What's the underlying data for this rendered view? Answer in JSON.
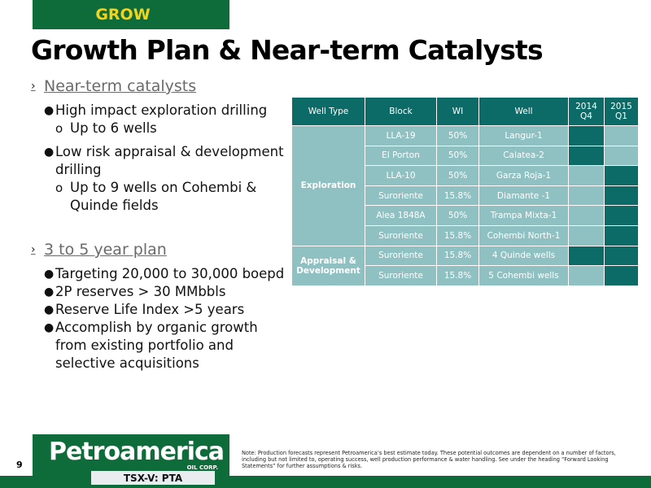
{
  "header": {
    "tab_label": "GROW",
    "title": "Growth Plan & Near-term Catalysts"
  },
  "section1": {
    "heading": "Near-term catalysts",
    "b1": "High impact exploration drilling",
    "b1_sub": "Up to 6 wells",
    "b2": "Low risk appraisal & development drilling",
    "b2_sub": "Up to 9 wells on Cohembi & Quinde fields"
  },
  "section2": {
    "heading": "3 to 5 year plan",
    "b1": "Targeting 20,000 to 30,000 boepd",
    "b2": "2P reserves > 30 MMbbls",
    "b3": "Reserve Life Index >5 years",
    "b4": "Accomplish by organic growth from existing portfolio and selective acquisitions"
  },
  "table": {
    "headers": {
      "well_type": "Well Type",
      "block": "Block",
      "wi": "WI",
      "well": "Well",
      "q1": "2014",
      "q1b": "Q4",
      "q2": "2015",
      "q2b": "Q1"
    },
    "group_exploration": "Exploration",
    "group_appraisal": "Appraisal & Development",
    "rows": [
      {
        "block": "LLA-19",
        "wi": "50%",
        "well": "Langur-1",
        "q4": true,
        "q1": false
      },
      {
        "block": "El Porton",
        "wi": "50%",
        "well": "Calatea-2",
        "q4": true,
        "q1": false
      },
      {
        "block": "LLA-10",
        "wi": "50%",
        "well": "Garza  Roja-1",
        "q4": false,
        "q1": true
      },
      {
        "block": "Suroriente",
        "wi": "15.8%",
        "well": "Diamante -1",
        "q4": false,
        "q1": true
      },
      {
        "block": "Alea 1848A",
        "wi": "50%",
        "well": "Trampa Mixta-1",
        "q4": false,
        "q1": true
      },
      {
        "block": "Suroriente",
        "wi": "15.8%",
        "well": "Cohembi North-1",
        "q4": false,
        "q1": true
      },
      {
        "block": "Suroriente",
        "wi": "15.8%",
        "well": "4 Quinde wells",
        "q4": true,
        "q1": true
      },
      {
        "block": "Suroriente",
        "wi": "15.8%",
        "well": "5 Cohembi wells",
        "q4": false,
        "q1": true
      }
    ]
  },
  "footer": {
    "page_number": "9",
    "logo_word": "Petroamerica",
    "logo_corp": "OIL CORP.",
    "ticker": "TSX-V: PTA",
    "note": "Note: Production forecasts represent Petroamerica’s best estimate today. These potential outcomes are dependent on a number of factors, including but not limited to, operating success, well production performance & water handling. See under the heading “Forward Looking Statements” for further assumptions & risks."
  },
  "colors": {
    "brand_green": "#0e6b3a",
    "accent_yellow": "#f3d21a",
    "teal_dark": "#0c6a67",
    "teal_light": "#8fc0c2"
  }
}
